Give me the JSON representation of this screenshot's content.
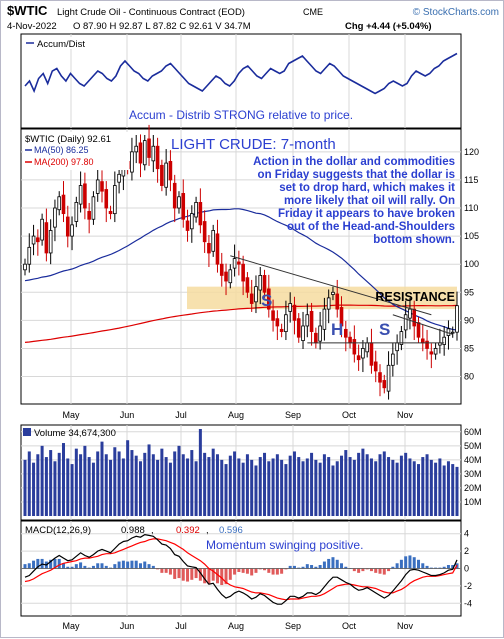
{
  "header": {
    "symbol": "$WTIC",
    "name": "Light Crude Oil - Continuous Contract (EOD)",
    "exchange": "CME",
    "source": "© StockCharts.com",
    "date": "4-Nov-2022",
    "ohlc": "O 87.90  H 92.87  L 87.82  C 92.61  V 34.7M",
    "change": "Chg +4.44 (+5.04%)"
  },
  "colors": {
    "price_up": "#000000",
    "price_down": "#cc0000",
    "ma50": "#1a2c9c",
    "ma200": "#dd0000",
    "accent_text": "#2b3fd0",
    "panel_border": "#000000",
    "resistance_band": "#f6dca0",
    "volume_bar": "#2a3d9c",
    "macd_line": "#000000",
    "signal_line": "#ff0000",
    "hist_pos": "#3a6fc0",
    "hist_neg": "#e05a5a"
  },
  "chart_data": [
    {
      "type": "line",
      "panel": "accum_dist",
      "legend": "Accum/Dist",
      "annotation": "Accum - Distrib STRONG relative to price.",
      "x_labels": [
        "May",
        "Jun",
        "Jul",
        "Aug",
        "Sep",
        "Oct",
        "Nov"
      ],
      "series": [
        {
          "name": "Accum/Dist",
          "values": [
            0.3,
            0.4,
            0.2,
            0.45,
            0.55,
            0.35,
            0.6,
            0.65,
            0.5,
            0.4,
            0.55,
            0.45,
            0.35,
            0.3,
            0.4,
            0.5,
            0.6,
            0.55,
            0.45,
            0.4,
            0.5,
            0.7,
            0.8,
            0.7,
            0.6,
            0.55,
            0.45,
            0.4,
            0.5,
            0.55,
            0.6,
            0.7,
            0.75,
            0.65,
            0.55,
            0.45,
            0.35,
            0.3,
            0.25,
            0.2,
            0.3,
            0.4,
            0.5,
            0.45,
            0.35,
            0.3,
            0.4,
            0.55,
            0.65,
            0.7,
            0.6,
            0.5,
            0.45,
            0.55,
            0.65,
            0.6,
            0.55,
            0.6,
            0.75,
            0.8,
            0.85,
            0.9,
            0.8,
            0.7,
            0.6,
            0.55,
            0.65,
            0.75,
            0.7,
            0.6,
            0.5,
            0.45,
            0.4,
            0.35,
            0.3,
            0.25,
            0.2,
            0.15,
            0.2,
            0.25,
            0.35,
            0.4,
            0.35,
            0.3,
            0.35,
            0.5,
            0.6,
            0.55,
            0.5,
            0.55,
            0.65,
            0.7,
            0.8,
            0.85,
            0.9,
            0.95
          ]
        }
      ]
    },
    {
      "type": "candlestick",
      "panel": "price",
      "legend": "$WTIC (Daily) 92.61",
      "title": "LIGHT CRUDE: 7-month",
      "annotation_lines": [
        "Action in the dollar and commodities",
        "on Friday suggests that the dollar is",
        "set to drop hard, which makes it",
        "more likely that oil will rally. On",
        "Friday it appears to have broken",
        "out of the Head-and-Shoulders",
        "bottom shown."
      ],
      "resistance_label": "RESISTANCE",
      "pattern_labels": [
        "S",
        "H",
        "S"
      ],
      "x_labels": [
        "May",
        "Jun",
        "Jul",
        "Aug",
        "Sep",
        "Oct",
        "Nov"
      ],
      "y_ticks": [
        80,
        85,
        90,
        95,
        100,
        105,
        110,
        115,
        120
      ],
      "ylim": [
        76,
        123
      ],
      "closes": [
        100.0,
        103.0,
        105.0,
        104.0,
        108.0,
        102.0,
        106.0,
        110.0,
        112.0,
        109.0,
        105.0,
        107.0,
        111.0,
        114.0,
        110.0,
        108.0,
        112.0,
        115.0,
        113.0,
        110.0,
        109.0,
        114.0,
        116.0,
        118.0,
        117.0,
        120.0,
        121.0,
        118.0,
        122.0,
        119.0,
        121.0,
        117.0,
        114.0,
        118.0,
        115.0,
        110.0,
        112.0,
        108.0,
        106.0,
        109.0,
        111.0,
        107.0,
        104.0,
        102.0,
        106.0,
        100.0,
        98.0,
        97.0,
        99.0,
        101.0,
        100.0,
        97.0,
        95.0,
        93.0,
        96.0,
        98.0,
        95.0,
        92.0,
        90.0,
        89.0,
        88.0,
        91.0,
        93.0,
        90.0,
        87.0,
        89.0,
        91.0,
        88.0,
        86.0,
        89.0,
        92.0,
        94.0,
        95.0,
        92.0,
        89.0,
        87.0,
        86.0,
        84.0,
        83.0,
        85.0,
        86.0,
        82.0,
        81.0,
        79.0,
        78.0,
        82.0,
        84.0,
        86.0,
        88.0,
        91.0,
        92.0,
        89.0,
        87.0,
        86.0,
        85.0,
        84.0,
        85.0,
        86.0,
        87.0,
        88.5,
        87.9,
        92.61
      ],
      "series": [
        {
          "name": "MA(50) 86.25",
          "last": 86.25
        },
        {
          "name": "MA(200) 97.80",
          "last": 97.8
        }
      ]
    },
    {
      "type": "bar",
      "panel": "volume",
      "legend": "Volume 34,674,300",
      "y_tick_labels": [
        "10M",
        "20M",
        "30M",
        "40M",
        "50M",
        "60M"
      ],
      "ylim": [
        0,
        62
      ],
      "values": [
        40,
        46,
        38,
        44,
        50,
        42,
        47,
        39,
        45,
        52,
        41,
        37,
        48,
        44,
        50,
        42,
        38,
        46,
        53,
        44,
        40,
        49,
        46,
        41,
        54,
        47,
        43,
        39,
        45,
        51,
        44,
        40,
        48,
        42,
        38,
        46,
        50,
        44,
        41,
        47,
        39,
        62,
        45,
        42,
        48,
        44,
        40,
        37,
        43,
        46,
        41,
        38,
        44,
        40,
        36,
        42,
        45,
        39,
        41,
        44,
        40,
        37,
        43,
        46,
        42,
        39,
        41,
        45,
        40,
        38,
        44,
        42,
        36,
        39,
        43,
        47,
        42,
        40,
        45,
        48,
        44,
        41,
        39,
        44,
        46,
        42,
        40,
        38,
        43,
        45,
        41,
        39,
        37,
        42,
        44,
        40,
        38,
        41,
        36,
        39,
        37,
        35
      ]
    },
    {
      "type": "line",
      "panel": "macd",
      "legend": "MACD(12,26,9)",
      "legend_values": [
        "0.988",
        "0.392",
        "0.596"
      ],
      "annotation": "Momentum swinging positive.",
      "x_labels": [
        "May",
        "Jun",
        "Jul",
        "Aug",
        "Sep",
        "Oct",
        "Nov"
      ],
      "y_ticks": [
        -4,
        -2,
        0,
        2,
        4
      ],
      "ylim": [
        -5,
        5
      ],
      "series": [
        {
          "name": "MACD",
          "values": [
            -1.0,
            -0.8,
            -0.3,
            0.2,
            0.5,
            0.4,
            0.8,
            1.2,
            1.5,
            1.2,
            0.9,
            1.0,
            1.4,
            1.8,
            1.5,
            1.3,
            1.6,
            2.0,
            2.2,
            2.0,
            1.8,
            2.3,
            2.8,
            3.1,
            3.2,
            3.5,
            3.7,
            3.6,
            3.9,
            3.8,
            3.7,
            3.3,
            2.8,
            2.7,
            2.3,
            1.6,
            1.4,
            0.8,
            0.3,
            0.2,
            0.1,
            -0.5,
            -1.2,
            -1.8,
            -1.7,
            -2.4,
            -3.0,
            -3.4,
            -3.2,
            -2.8,
            -2.6,
            -2.8,
            -3.1,
            -3.5,
            -3.3,
            -2.9,
            -3.1,
            -3.5,
            -3.9,
            -4.1,
            -4.1,
            -3.7,
            -3.2,
            -3.2,
            -3.4,
            -3.2,
            -2.8,
            -2.8,
            -3.0,
            -2.7,
            -2.1,
            -1.5,
            -1.0,
            -1.0,
            -1.3,
            -1.6,
            -1.8,
            -2.2,
            -2.5,
            -2.4,
            -2.2,
            -2.5,
            -2.8,
            -3.1,
            -3.4,
            -3.1,
            -2.6,
            -2.0,
            -1.4,
            -0.7,
            -0.2,
            -0.1,
            -0.2,
            -0.4,
            -0.6,
            -0.8,
            -0.8,
            -0.7,
            -0.5,
            -0.2,
            -0.1,
            0.988
          ]
        },
        {
          "name": "Signal",
          "values": [
            -1.5,
            -1.4,
            -1.2,
            -0.9,
            -0.6,
            -0.4,
            -0.2,
            0.1,
            0.4,
            0.6,
            0.7,
            0.8,
            0.9,
            1.1,
            1.2,
            1.2,
            1.3,
            1.4,
            1.6,
            1.7,
            1.7,
            1.8,
            2.0,
            2.2,
            2.4,
            2.6,
            2.8,
            3.0,
            3.1,
            3.3,
            3.4,
            3.4,
            3.3,
            3.2,
            3.0,
            2.8,
            2.5,
            2.2,
            1.8,
            1.5,
            1.2,
            0.9,
            0.5,
            0.0,
            -0.3,
            -0.7,
            -1.1,
            -1.6,
            -1.9,
            -2.1,
            -2.2,
            -2.3,
            -2.5,
            -2.7,
            -2.8,
            -2.8,
            -2.9,
            -3.0,
            -3.2,
            -3.4,
            -3.5,
            -3.6,
            -3.5,
            -3.5,
            -3.5,
            -3.4,
            -3.3,
            -3.2,
            -3.2,
            -3.1,
            -2.9,
            -2.6,
            -2.3,
            -2.0,
            -1.9,
            -1.8,
            -1.8,
            -1.9,
            -2.0,
            -2.1,
            -2.1,
            -2.2,
            -2.3,
            -2.5,
            -2.7,
            -2.8,
            -2.8,
            -2.6,
            -2.4,
            -2.1,
            -1.7,
            -1.4,
            -1.2,
            -1.0,
            -0.9,
            -0.9,
            -0.9,
            -0.8,
            -0.7,
            -0.6,
            -0.5,
            0.392
          ]
        }
      ]
    }
  ]
}
